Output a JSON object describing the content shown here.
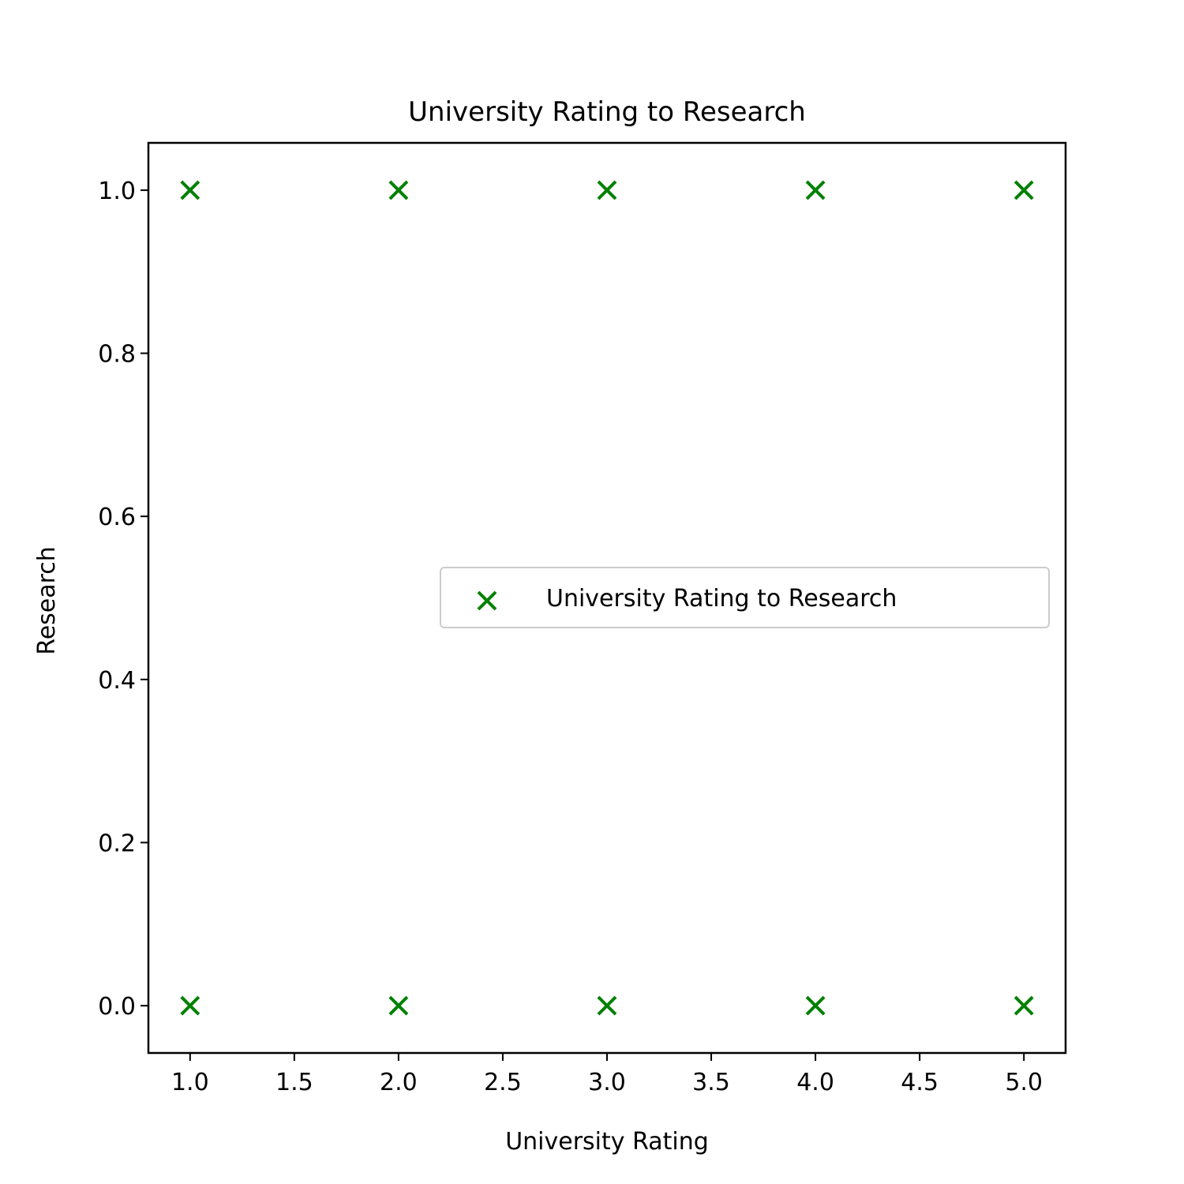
{
  "chart_data": {
    "type": "scatter",
    "title": "University Rating to Research",
    "xlabel": "University Rating",
    "ylabel": "Research",
    "xlim": [
      0.8,
      5.2
    ],
    "ylim": [
      -0.058,
      1.058
    ],
    "xticks": [
      1.0,
      1.5,
      2.0,
      2.5,
      3.0,
      3.5,
      4.0,
      4.5,
      5.0
    ],
    "xtick_labels": [
      "1.0",
      "1.5",
      "2.0",
      "2.5",
      "3.0",
      "3.5",
      "4.0",
      "4.5",
      "5.0"
    ],
    "yticks": [
      0.0,
      0.2,
      0.4,
      0.6,
      0.8,
      1.0
    ],
    "ytick_labels": [
      "0.0",
      "0.2",
      "0.4",
      "0.6",
      "0.8",
      "1.0"
    ],
    "grid": false,
    "legend_position": "center-right",
    "series": [
      {
        "name": "University Rating to Research",
        "color": "#008000",
        "marker": "x",
        "points": [
          {
            "x": 1,
            "y": 1
          },
          {
            "x": 2,
            "y": 1
          },
          {
            "x": 3,
            "y": 1
          },
          {
            "x": 4,
            "y": 1
          },
          {
            "x": 5,
            "y": 1
          },
          {
            "x": 1,
            "y": 0
          },
          {
            "x": 2,
            "y": 0
          },
          {
            "x": 3,
            "y": 0
          },
          {
            "x": 4,
            "y": 0
          },
          {
            "x": 5,
            "y": 0
          }
        ]
      }
    ]
  }
}
